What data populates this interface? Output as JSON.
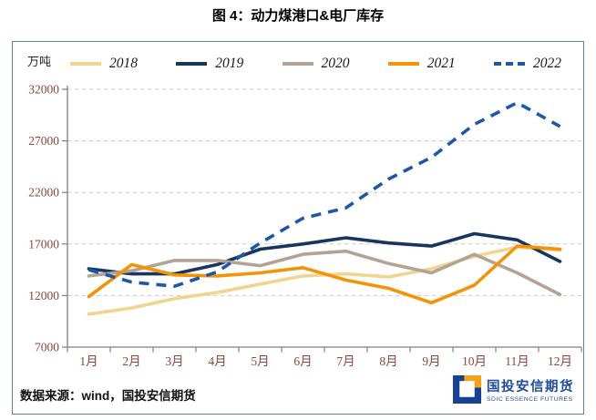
{
  "title": "图 4：动力煤港口&电厂库存",
  "chart_data": {
    "type": "line",
    "title": "动力煤港口&电厂库存",
    "unit_label": "万吨",
    "categories": [
      "1月",
      "2月",
      "3月",
      "4月",
      "5月",
      "6月",
      "7月",
      "8月",
      "9月",
      "10月",
      "11月",
      "12月"
    ],
    "series": [
      {
        "name": "2018",
        "color": "#F0D48F",
        "dash": false,
        "values": [
          10200,
          10800,
          11700,
          12300,
          13100,
          13900,
          14100,
          13800,
          14600,
          15800,
          16700,
          16400
        ]
      },
      {
        "name": "2019",
        "color": "#17365D",
        "dash": false,
        "values": [
          14600,
          14100,
          14100,
          15000,
          16500,
          17000,
          17600,
          17100,
          16800,
          18000,
          17400,
          15300
        ]
      },
      {
        "name": "2020",
        "color": "#B3A395",
        "dash": false,
        "values": [
          13900,
          14400,
          15400,
          15400,
          14900,
          16000,
          16300,
          15100,
          14200,
          16000,
          14200,
          12100
        ]
      },
      {
        "name": "2021",
        "color": "#F49306",
        "dash": false,
        "values": [
          11900,
          15000,
          14000,
          13900,
          14200,
          14700,
          13500,
          12700,
          11300,
          13000,
          16800,
          16500
        ]
      },
      {
        "name": "2022",
        "color": "#1C57AC",
        "dash": true,
        "values": [
          14500,
          13300,
          12900,
          14300,
          17100,
          19500,
          20500,
          23300,
          25400,
          28600,
          30700,
          28400
        ]
      }
    ],
    "ylim": [
      7000,
      32000
    ],
    "yticks": [
      7000,
      12000,
      17000,
      22000,
      27000,
      32000
    ],
    "grid": "horizontal-dashed",
    "legend_position": "top",
    "axis_label_color": "#8C463C",
    "gridline_color": "#CCCCCC",
    "axis_line_color": "#7F7F7F"
  },
  "footer": {
    "source": "数据来源：wind，国投安信期货"
  },
  "logo": {
    "name": "国投安信期货",
    "subtitle": "SDIC ESSENCE FUTURES",
    "colors": {
      "blue": "#164194",
      "orange": "#F7A11A"
    }
  }
}
